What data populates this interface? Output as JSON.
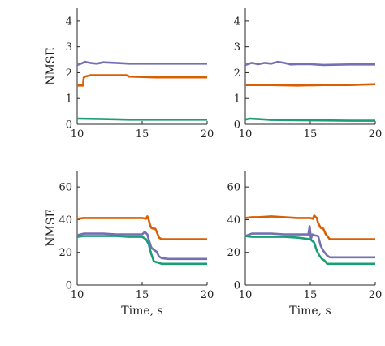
{
  "chart_data": [
    {
      "type": "line",
      "xlabel": "",
      "ylabel": "NMSE",
      "xlim": [
        10,
        20
      ],
      "ylim": [
        0,
        4.5
      ],
      "xticks": [
        10,
        15,
        20
      ],
      "yticks": [
        0,
        1,
        2,
        3,
        4
      ],
      "grid": false,
      "series": [
        {
          "color": "#d95f02",
          "x": [
            10.0,
            10.45,
            10.5,
            10.6,
            11.0,
            11.8,
            12.5,
            13.0,
            13.8,
            14.0,
            16.0,
            18.0,
            20.0
          ],
          "y": [
            1.5,
            1.5,
            1.8,
            1.85,
            1.9,
            1.9,
            1.9,
            1.9,
            1.9,
            1.85,
            1.82,
            1.82,
            1.82
          ]
        },
        {
          "color": "#7570b3",
          "x": [
            10.0,
            10.3,
            10.6,
            11.0,
            11.5,
            12.0,
            13.0,
            14.0,
            16.0,
            18.0,
            20.0
          ],
          "y": [
            2.3,
            2.35,
            2.42,
            2.38,
            2.35,
            2.4,
            2.38,
            2.35,
            2.35,
            2.35,
            2.35
          ]
        },
        {
          "color": "#1b9e77",
          "x": [
            10.0,
            12.0,
            14.0,
            16.0,
            18.0,
            20.0
          ],
          "y": [
            0.22,
            0.2,
            0.18,
            0.18,
            0.18,
            0.18
          ]
        }
      ]
    },
    {
      "type": "line",
      "xlabel": "",
      "ylabel": "",
      "xlim": [
        10,
        20
      ],
      "ylim": [
        0,
        4.5
      ],
      "xticks": [
        10,
        15,
        20
      ],
      "yticks": [
        0,
        1,
        2,
        3,
        4
      ],
      "grid": false,
      "series": [
        {
          "color": "#d95f02",
          "x": [
            10.0,
            12.0,
            14.0,
            16.0,
            18.0,
            20.0
          ],
          "y": [
            1.52,
            1.52,
            1.5,
            1.52,
            1.52,
            1.55
          ]
        },
        {
          "color": "#7570b3",
          "x": [
            10.0,
            10.5,
            11.0,
            11.5,
            12.0,
            12.5,
            13.0,
            13.5,
            14.0,
            15.0,
            16.0,
            18.0,
            20.0
          ],
          "y": [
            2.3,
            2.38,
            2.33,
            2.38,
            2.35,
            2.42,
            2.38,
            2.32,
            2.33,
            2.33,
            2.3,
            2.32,
            2.32
          ]
        },
        {
          "color": "#1b9e77",
          "x": [
            10.0,
            10.3,
            11.0,
            12.0,
            14.0,
            16.0,
            18.0,
            20.0
          ],
          "y": [
            0.18,
            0.22,
            0.2,
            0.17,
            0.16,
            0.15,
            0.14,
            0.14
          ]
        }
      ]
    },
    {
      "type": "line",
      "xlabel": "Time, s",
      "ylabel": "NMSE",
      "xlim": [
        10,
        20
      ],
      "ylim": [
        0,
        70
      ],
      "xticks": [
        10,
        15,
        20
      ],
      "yticks": [
        0,
        20,
        40,
        60
      ],
      "grid": false,
      "series": [
        {
          "color": "#d95f02",
          "x": [
            10.0,
            10.5,
            11.0,
            12.0,
            13.0,
            14.0,
            15.0,
            15.3,
            15.4,
            15.5,
            15.6,
            15.7,
            15.85,
            16.0,
            16.1,
            16.3,
            16.5,
            17.0,
            18.0,
            19.0,
            20.0
          ],
          "y": [
            40.5,
            41.0,
            41.0,
            41.0,
            41.0,
            41.0,
            41.0,
            40.5,
            42.0,
            40.0,
            37.0,
            35.0,
            34.5,
            34.5,
            33.0,
            29.0,
            28.0,
            28.0,
            28.0,
            28.0,
            28.0
          ]
        },
        {
          "color": "#7570b3",
          "x": [
            10.0,
            10.5,
            12.0,
            13.0,
            14.0,
            15.0,
            15.2,
            15.4,
            15.5,
            15.7,
            15.9,
            16.1,
            16.3,
            16.5,
            17.0,
            18.0,
            20.0
          ],
          "y": [
            30.5,
            31.5,
            31.5,
            31.0,
            31.0,
            31.0,
            32.5,
            31.0,
            28.0,
            23.0,
            21.5,
            20.5,
            17.5,
            16.5,
            16.0,
            16.0,
            16.0
          ]
        },
        {
          "color": "#1b9e77",
          "x": [
            10.0,
            10.5,
            12.0,
            13.0,
            14.0,
            15.0,
            15.3,
            15.5,
            15.7,
            15.9,
            16.1,
            16.3,
            16.5,
            17.0,
            18.0,
            20.0
          ],
          "y": [
            29.5,
            30.0,
            30.0,
            30.0,
            29.5,
            29.5,
            28.0,
            25.0,
            19.0,
            14.5,
            14.0,
            13.5,
            13.0,
            13.0,
            13.0,
            13.0
          ]
        }
      ]
    },
    {
      "type": "line",
      "xlabel": "Time, s",
      "ylabel": "",
      "xlim": [
        10,
        20
      ],
      "ylim": [
        0,
        70
      ],
      "xticks": [
        10,
        15,
        20
      ],
      "yticks": [
        0,
        20,
        40,
        60
      ],
      "grid": false,
      "series": [
        {
          "color": "#d95f02",
          "x": [
            10.0,
            10.5,
            11.0,
            12.0,
            13.0,
            14.0,
            15.0,
            15.2,
            15.3,
            15.5,
            15.6,
            15.8,
            16.0,
            16.2,
            16.5,
            17.0,
            18.0,
            19.0,
            20.0
          ],
          "y": [
            41.0,
            41.5,
            41.5,
            42.0,
            41.5,
            41.0,
            41.0,
            40.5,
            42.5,
            41.0,
            38.0,
            35.0,
            34.5,
            31.0,
            28.0,
            28.0,
            28.0,
            28.0,
            28.0
          ]
        },
        {
          "color": "#7570b3",
          "x": [
            10.0,
            10.5,
            12.0,
            13.0,
            14.0,
            14.85,
            14.95,
            15.05,
            15.15,
            15.3,
            15.6,
            15.8,
            16.0,
            16.3,
            16.5,
            17.0,
            18.0,
            20.0
          ],
          "y": [
            30.0,
            31.5,
            31.5,
            31.0,
            31.0,
            31.0,
            36.0,
            28.0,
            31.0,
            30.5,
            30.0,
            24.0,
            21.0,
            18.0,
            17.0,
            17.0,
            17.0,
            17.0
          ]
        },
        {
          "color": "#1b9e77",
          "x": [
            10.0,
            10.5,
            12.0,
            13.0,
            14.0,
            15.0,
            15.3,
            15.5,
            15.7,
            15.9,
            16.1,
            16.3,
            16.5,
            17.0,
            18.0,
            20.0
          ],
          "y": [
            30.0,
            29.5,
            29.5,
            29.5,
            29.0,
            28.0,
            26.0,
            21.0,
            18.0,
            16.0,
            15.0,
            13.0,
            13.0,
            13.0,
            13.0,
            13.0
          ]
        }
      ]
    }
  ]
}
